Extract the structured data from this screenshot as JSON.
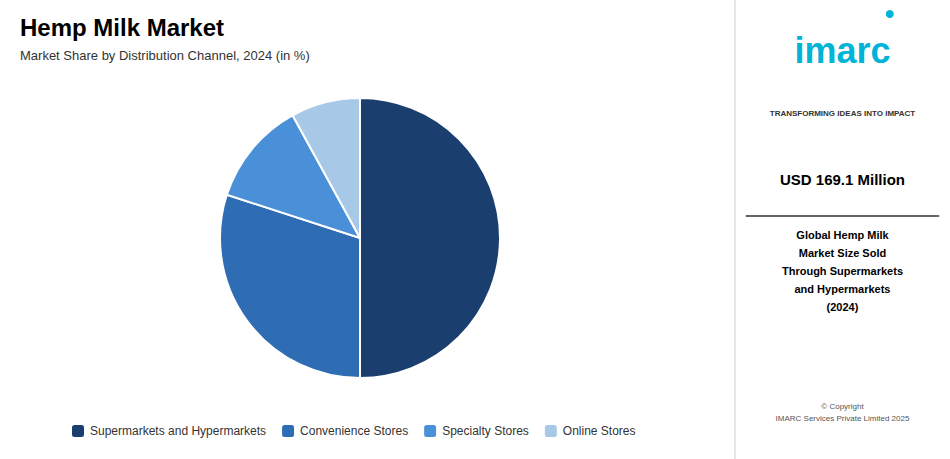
{
  "chart_data": {
    "type": "pie",
    "title": "Hemp Milk Market",
    "subtitle": "Market Share by Distribution Channel, 2024 (in %)",
    "categories": [
      "Supermarkets and Hypermarkets",
      "Convenience Stores",
      "Specialty Stores",
      "Online Stores"
    ],
    "values": [
      50,
      30,
      12,
      8
    ],
    "colors": [
      "#1a3f6f",
      "#2e6db4",
      "#4a90d9",
      "#a8c8e8"
    ],
    "legend": "bottom",
    "annotations": [
      "imarc",
      "TRANSFORMING IDEAS INTO IMPACT",
      "USD 169.1 Million",
      "Global Hemp Milk\nMarket Size Sold\nThrough Supermarkets\nand Hypermarkets\n(2024)",
      "© Copyright\nIMARC Services Private Limited 2025"
    ]
  }
}
